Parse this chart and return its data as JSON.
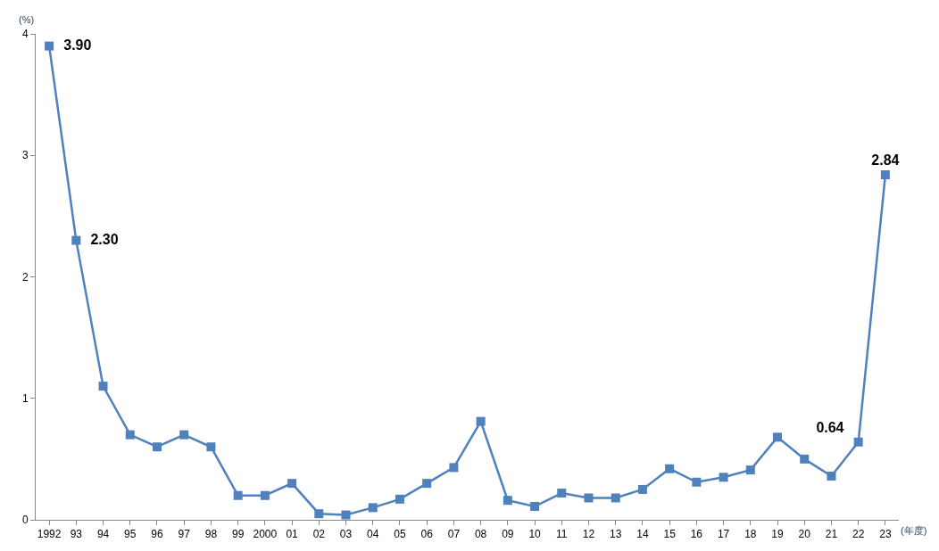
{
  "chart_data": {
    "type": "line",
    "xlabel": "(年度)",
    "ylabel": "(%)",
    "categories": [
      "1992",
      "93",
      "94",
      "95",
      "96",
      "97",
      "98",
      "99",
      "2000",
      "01",
      "02",
      "03",
      "04",
      "05",
      "06",
      "07",
      "08",
      "09",
      "10",
      "11",
      "12",
      "13",
      "14",
      "15",
      "16",
      "17",
      "18",
      "19",
      "20",
      "21",
      "22",
      "23"
    ],
    "series": [
      {
        "color": "#4f81bd",
        "values": [
          3.9,
          2.3,
          1.1,
          0.7,
          0.6,
          0.7,
          0.6,
          0.2,
          0.2,
          0.3,
          0.05,
          0.04,
          0.1,
          0.17,
          0.3,
          0.43,
          0.81,
          0.16,
          0.11,
          0.22,
          0.18,
          0.18,
          0.25,
          0.42,
          0.31,
          0.35,
          0.41,
          0.68,
          0.5,
          0.36,
          0.64,
          2.84
        ],
        "value_labels": [
          "3.90",
          "2.30",
          null,
          null,
          null,
          null,
          null,
          null,
          null,
          null,
          null,
          null,
          null,
          null,
          null,
          null,
          null,
          null,
          null,
          null,
          null,
          null,
          null,
          null,
          null,
          null,
          null,
          null,
          null,
          null,
          "0.64",
          "2.84"
        ]
      }
    ],
    "ylim": [
      0,
      4
    ],
    "yticks": [
      0,
      1,
      2,
      3,
      4
    ],
    "legend": false,
    "marker": "square",
    "line_style": "solid"
  }
}
